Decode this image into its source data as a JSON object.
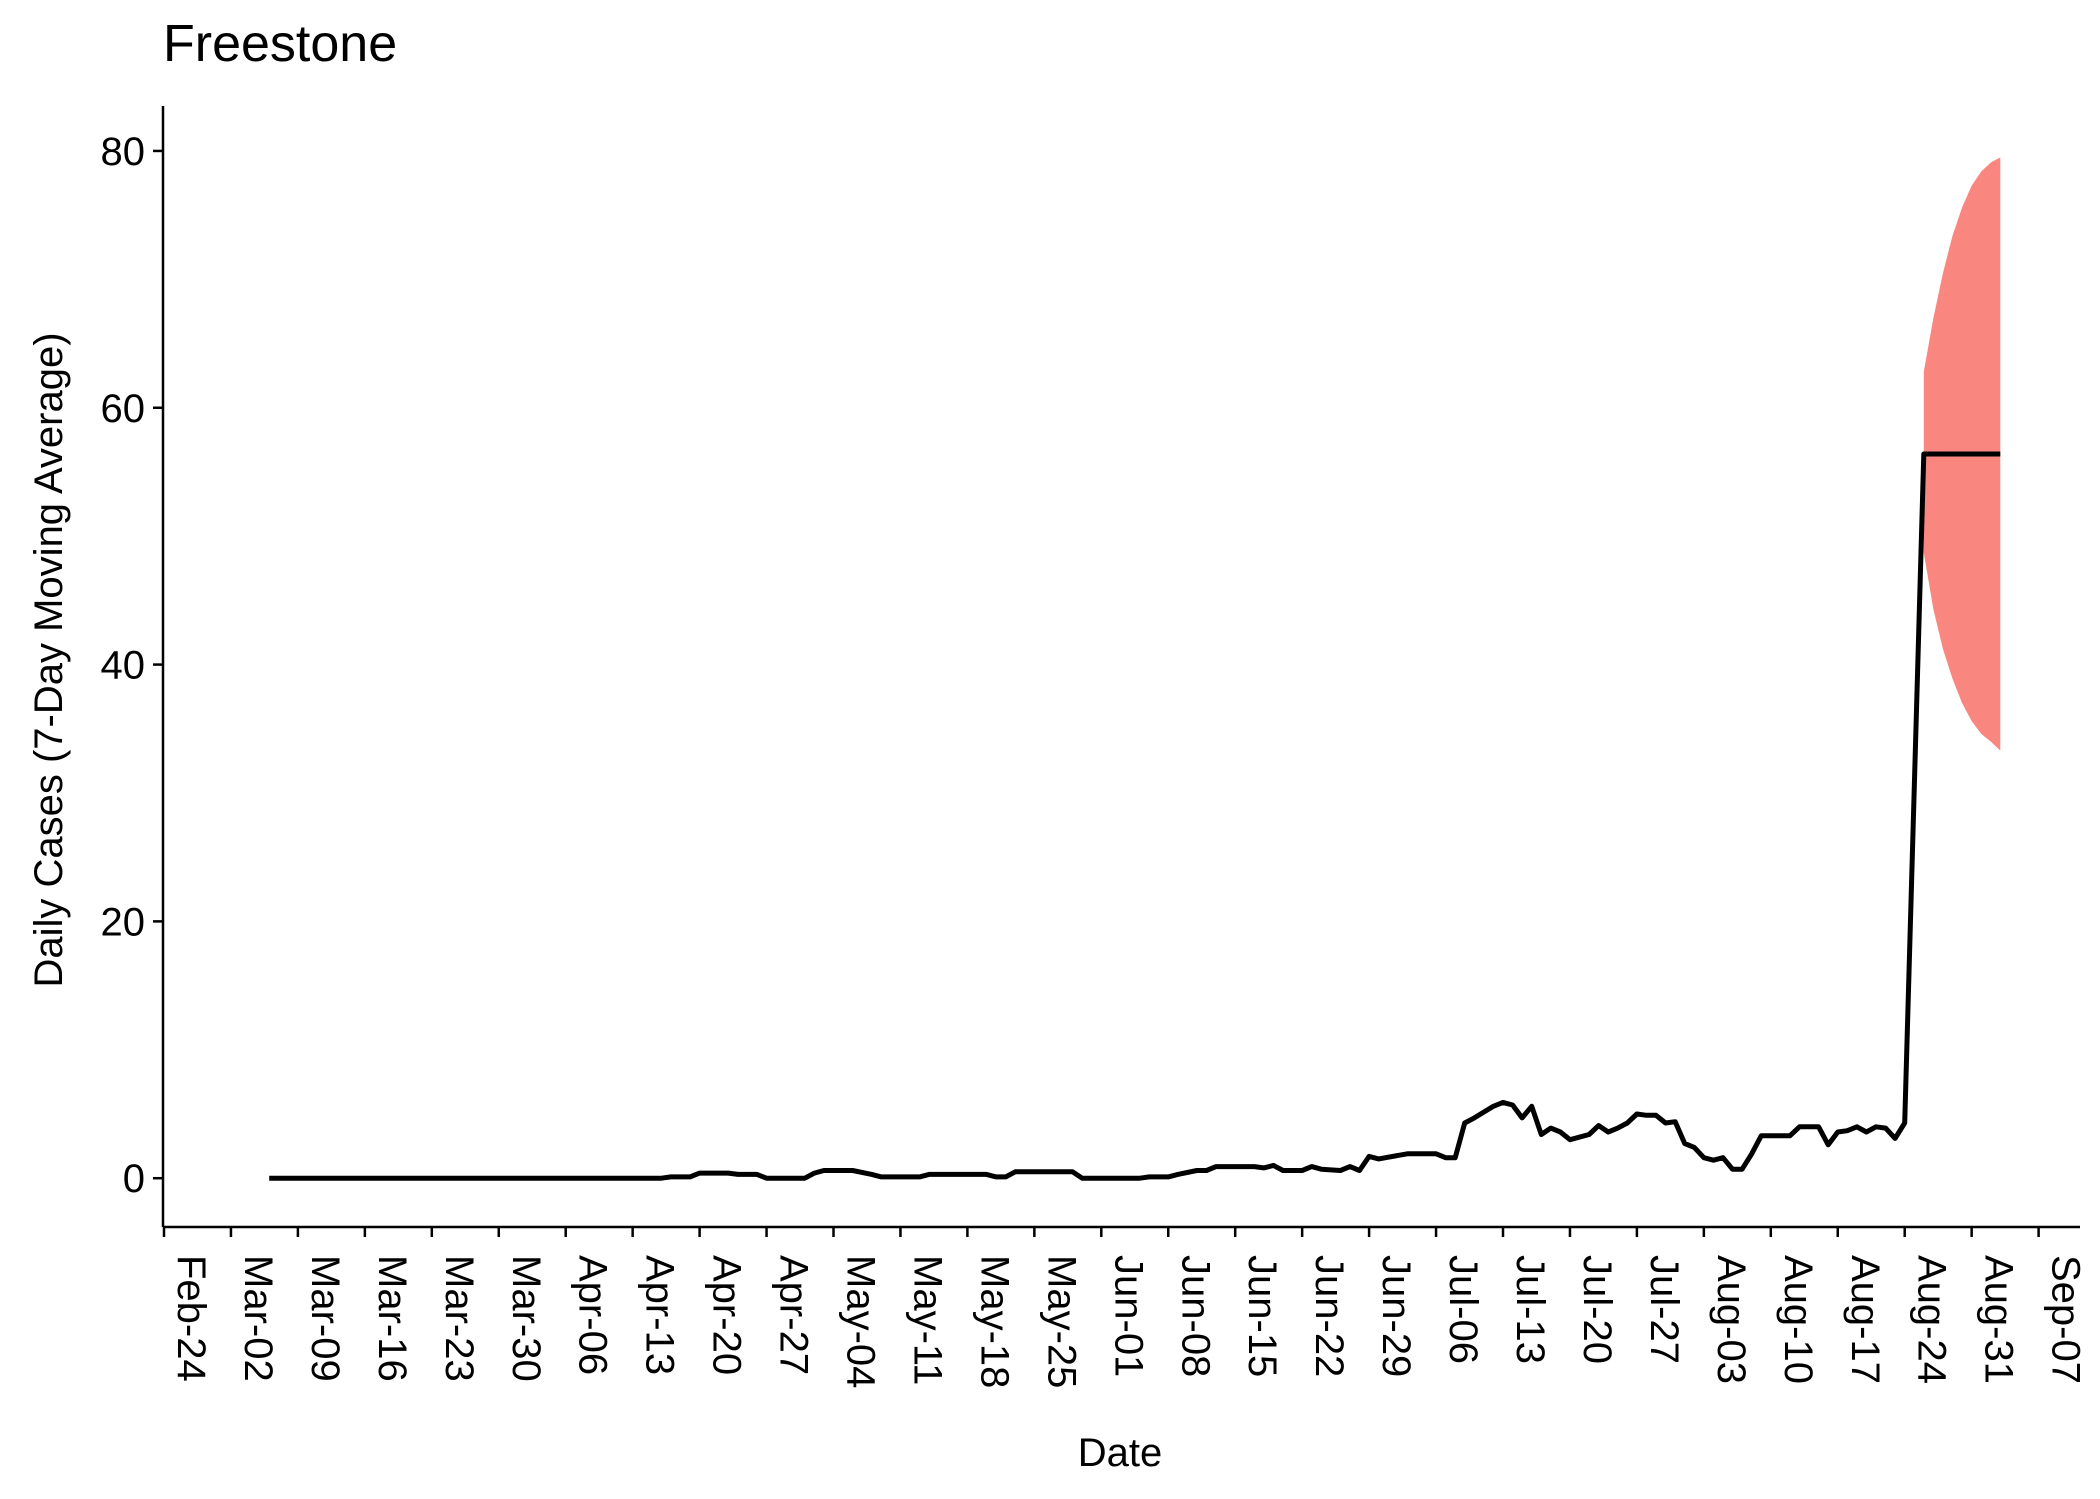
{
  "chart_data": {
    "type": "line",
    "title": "Freestone",
    "xlabel": "Date",
    "ylabel": "Daily Cases (7-Day Moving Average)",
    "x_tick_labels": [
      "Feb-24",
      "Mar-02",
      "Mar-09",
      "Mar-16",
      "Mar-23",
      "Mar-30",
      "Apr-06",
      "Apr-13",
      "Apr-20",
      "Apr-27",
      "May-04",
      "May-11",
      "May-18",
      "May-25",
      "Jun-01",
      "Jun-08",
      "Jun-15",
      "Jun-22",
      "Jun-29",
      "Jul-06",
      "Jul-13",
      "Jul-20",
      "Jul-27",
      "Aug-03",
      "Aug-10",
      "Aug-17",
      "Aug-24",
      "Aug-31",
      "Sep-07"
    ],
    "y_ticks": [
      0,
      20,
      40,
      60,
      80
    ],
    "ylim": [
      -3.8,
      83.5
    ],
    "xlim": [
      "2020-02-24",
      "2020-09-11"
    ],
    "grid": false,
    "series": [
      {
        "color": "#000000",
        "points": [
          [
            "2020-03-06",
            0
          ],
          [
            "2020-04-16",
            0
          ],
          [
            "2020-04-17",
            0.1
          ],
          [
            "2020-04-19",
            0.1
          ],
          [
            "2020-04-20",
            0.4
          ],
          [
            "2020-04-23",
            0.4
          ],
          [
            "2020-04-24",
            0.3
          ],
          [
            "2020-04-26",
            0.3
          ],
          [
            "2020-04-27",
            0
          ],
          [
            "2020-05-01",
            0
          ],
          [
            "2020-05-02",
            0.4
          ],
          [
            "2020-05-03",
            0.6
          ],
          [
            "2020-05-06",
            0.6
          ],
          [
            "2020-05-08",
            0.3
          ],
          [
            "2020-05-09",
            0.1
          ],
          [
            "2020-05-13",
            0.1
          ],
          [
            "2020-05-14",
            0.3
          ],
          [
            "2020-05-20",
            0.3
          ],
          [
            "2020-05-21",
            0.1
          ],
          [
            "2020-05-22",
            0.1
          ],
          [
            "2020-05-23",
            0.5
          ],
          [
            "2020-05-29",
            0.5
          ],
          [
            "2020-05-30",
            0
          ],
          [
            "2020-06-05",
            0
          ],
          [
            "2020-06-06",
            0.1
          ],
          [
            "2020-06-08",
            0.1
          ],
          [
            "2020-06-09",
            0.3
          ],
          [
            "2020-06-11",
            0.6
          ],
          [
            "2020-06-12",
            0.6
          ],
          [
            "2020-06-13",
            0.9
          ],
          [
            "2020-06-17",
            0.9
          ],
          [
            "2020-06-18",
            0.8
          ],
          [
            "2020-06-19",
            1.0
          ],
          [
            "2020-06-20",
            0.6
          ],
          [
            "2020-06-22",
            0.6
          ],
          [
            "2020-06-23",
            0.9
          ],
          [
            "2020-06-24",
            0.7
          ],
          [
            "2020-06-26",
            0.6
          ],
          [
            "2020-06-27",
            0.9
          ],
          [
            "2020-06-28",
            0.6
          ],
          [
            "2020-06-29",
            1.7
          ],
          [
            "2020-06-30",
            1.5
          ],
          [
            "2020-07-03",
            1.9
          ],
          [
            "2020-07-06",
            1.9
          ],
          [
            "2020-07-07",
            1.6
          ],
          [
            "2020-07-08",
            1.6
          ],
          [
            "2020-07-09",
            4.3
          ],
          [
            "2020-07-10",
            4.7
          ],
          [
            "2020-07-12",
            5.6
          ],
          [
            "2020-07-13",
            5.9
          ],
          [
            "2020-07-14",
            5.7
          ],
          [
            "2020-07-15",
            4.7
          ],
          [
            "2020-07-16",
            5.6
          ],
          [
            "2020-07-17",
            3.4
          ],
          [
            "2020-07-18",
            3.9
          ],
          [
            "2020-07-19",
            3.6
          ],
          [
            "2020-07-20",
            3.0
          ],
          [
            "2020-07-22",
            3.4
          ],
          [
            "2020-07-23",
            4.1
          ],
          [
            "2020-07-24",
            3.6
          ],
          [
            "2020-07-25",
            3.9
          ],
          [
            "2020-07-26",
            4.3
          ],
          [
            "2020-07-27",
            5.0
          ],
          [
            "2020-07-28",
            4.9
          ],
          [
            "2020-07-29",
            4.9
          ],
          [
            "2020-07-30",
            4.3
          ],
          [
            "2020-07-31",
            4.4
          ],
          [
            "2020-08-01",
            2.7
          ],
          [
            "2020-08-02",
            2.4
          ],
          [
            "2020-08-03",
            1.6
          ],
          [
            "2020-08-04",
            1.4
          ],
          [
            "2020-08-05",
            1.6
          ],
          [
            "2020-08-06",
            0.7
          ],
          [
            "2020-08-07",
            0.7
          ],
          [
            "2020-08-08",
            1.9
          ],
          [
            "2020-08-09",
            3.3
          ],
          [
            "2020-08-10",
            3.3
          ],
          [
            "2020-08-12",
            3.3
          ],
          [
            "2020-08-13",
            4.0
          ],
          [
            "2020-08-15",
            4.0
          ],
          [
            "2020-08-16",
            2.6
          ],
          [
            "2020-08-17",
            3.6
          ],
          [
            "2020-08-18",
            3.7
          ],
          [
            "2020-08-19",
            4.0
          ],
          [
            "2020-08-20",
            3.6
          ],
          [
            "2020-08-21",
            4.0
          ],
          [
            "2020-08-22",
            3.9
          ],
          [
            "2020-08-23",
            3.1
          ],
          [
            "2020-08-24",
            4.3
          ],
          [
            "2020-08-24",
            4.3
          ],
          [
            "2020-08-26",
            56.4
          ],
          [
            "2020-09-03",
            56.4
          ]
        ]
      }
    ],
    "band": {
      "color": "#F8766D",
      "opacity": 0.88,
      "points": [
        [
          "2020-08-26",
          48.7,
          62.8
        ],
        [
          "2020-08-27",
          44.3,
          67.0
        ],
        [
          "2020-08-28",
          41.2,
          70.5
        ],
        [
          "2020-08-29",
          38.9,
          73.4
        ],
        [
          "2020-08-30",
          37.0,
          75.6
        ],
        [
          "2020-08-31",
          35.6,
          77.3
        ],
        [
          "2020-09-01",
          34.6,
          78.4
        ],
        [
          "2020-09-02",
          34.0,
          79.1
        ],
        [
          "2020-09-03",
          33.3,
          79.5
        ]
      ]
    }
  }
}
